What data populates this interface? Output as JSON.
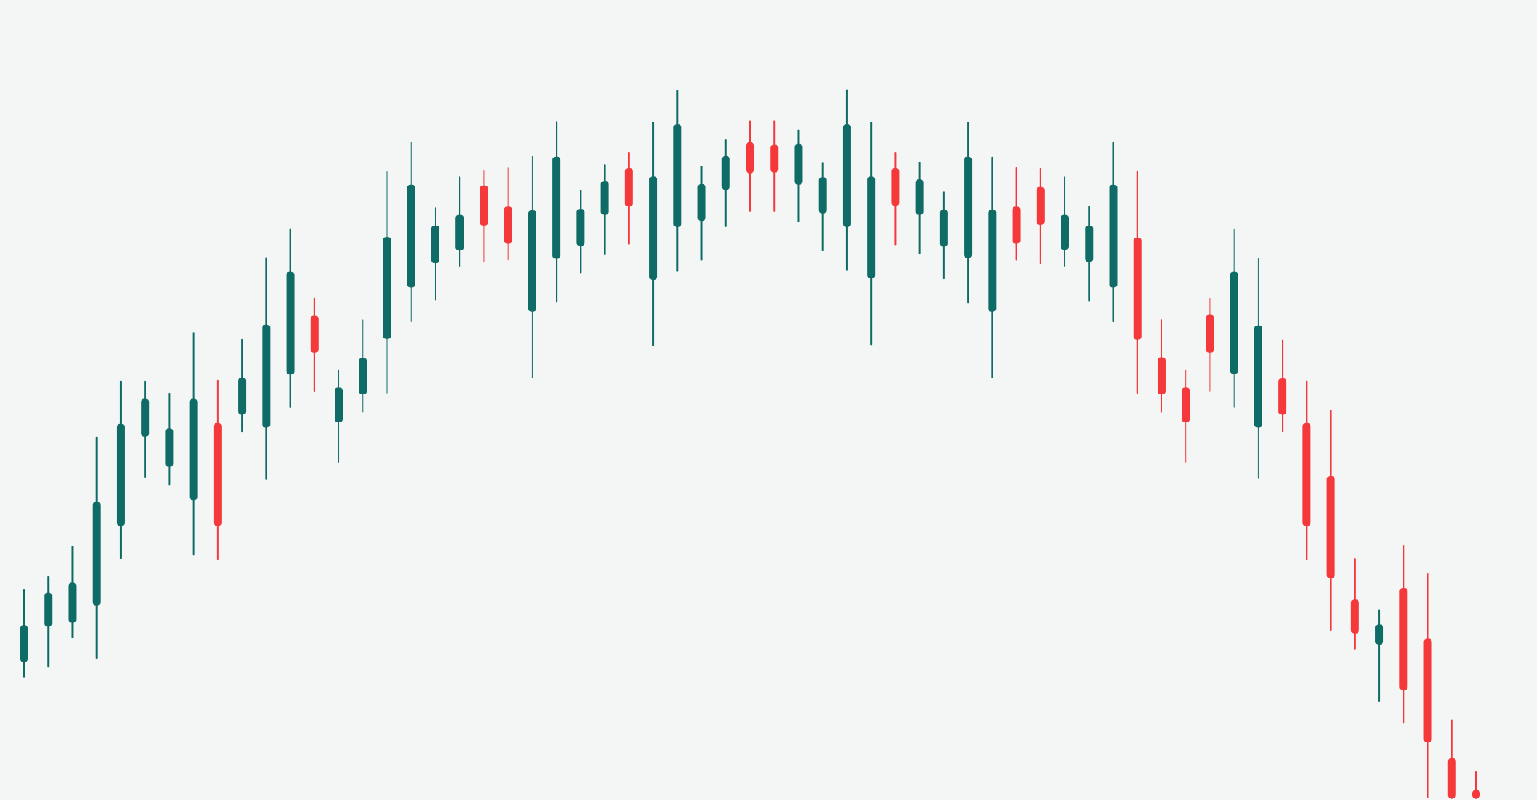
{
  "colors": {
    "background": "#f4f6f6",
    "bullish": "#0f6b66",
    "bearish": "#f5383a"
  },
  "chart_data": {
    "type": "candlestick",
    "title": "",
    "xlabel": "",
    "ylabel": "",
    "grid": false,
    "legend": "none",
    "ylim": [
      0,
      100
    ],
    "candles": [
      {
        "open": 18.0,
        "close": 22.9,
        "high": 27.6,
        "low": 16.1,
        "color": "bullish"
      },
      {
        "open": 22.7,
        "close": 27.2,
        "high": 29.3,
        "low": 17.4,
        "color": "bullish"
      },
      {
        "open": 23.2,
        "close": 28.5,
        "high": 33.3,
        "low": 21.3,
        "color": "bullish"
      },
      {
        "open": 25.5,
        "close": 39.2,
        "high": 47.7,
        "low": 18.5,
        "color": "bullish"
      },
      {
        "open": 36.0,
        "close": 49.5,
        "high": 55.1,
        "low": 31.7,
        "color": "bullish"
      },
      {
        "open": 47.8,
        "close": 52.8,
        "high": 55.1,
        "low": 42.5,
        "color": "bullish"
      },
      {
        "open": 43.8,
        "close": 48.9,
        "high": 53.5,
        "low": 41.5,
        "color": "bullish"
      },
      {
        "open": 39.4,
        "close": 52.8,
        "high": 61.5,
        "low": 32.2,
        "color": "bullish"
      },
      {
        "open": 49.6,
        "close": 36.0,
        "high": 55.2,
        "low": 31.6,
        "color": "bearish"
      },
      {
        "open": 50.7,
        "close": 55.6,
        "high": 60.6,
        "low": 48.5,
        "color": "bullish"
      },
      {
        "open": 49.0,
        "close": 62.6,
        "high": 71.4,
        "low": 42.2,
        "color": "bullish"
      },
      {
        "open": 56.0,
        "close": 69.6,
        "high": 75.2,
        "low": 51.7,
        "color": "bullish"
      },
      {
        "open": 63.8,
        "close": 58.9,
        "high": 66.1,
        "low": 53.8,
        "color": "bearish"
      },
      {
        "open": 49.7,
        "close": 54.3,
        "high": 56.6,
        "low": 44.4,
        "color": "bullish"
      },
      {
        "open": 53.4,
        "close": 58.2,
        "high": 63.2,
        "low": 51.1,
        "color": "bullish"
      },
      {
        "open": 60.7,
        "close": 74.2,
        "high": 82.8,
        "low": 53.6,
        "color": "bullish"
      },
      {
        "open": 67.5,
        "close": 81.1,
        "high": 86.7,
        "low": 63.1,
        "color": "bullish"
      },
      {
        "open": 70.7,
        "close": 75.7,
        "high": 78.0,
        "low": 65.9,
        "color": "bullish"
      },
      {
        "open": 72.4,
        "close": 77.1,
        "high": 82.1,
        "low": 70.3,
        "color": "bullish"
      },
      {
        "open": 81.0,
        "close": 75.7,
        "high": 82.9,
        "low": 70.9,
        "color": "bearish"
      },
      {
        "open": 78.2,
        "close": 73.3,
        "high": 83.3,
        "low": 71.2,
        "color": "bearish"
      },
      {
        "open": 64.3,
        "close": 77.7,
        "high": 84.8,
        "low": 55.6,
        "color": "bullish"
      },
      {
        "open": 71.3,
        "close": 84.8,
        "high": 89.4,
        "low": 65.6,
        "color": "bullish"
      },
      {
        "open": 73.0,
        "close": 77.9,
        "high": 80.3,
        "low": 69.5,
        "color": "bullish"
      },
      {
        "open": 77.1,
        "close": 81.6,
        "high": 83.7,
        "low": 71.9,
        "color": "bullish"
      },
      {
        "open": 83.3,
        "close": 78.2,
        "high": 85.3,
        "low": 73.3,
        "color": "bearish"
      },
      {
        "open": 68.5,
        "close": 82.2,
        "high": 89.3,
        "low": 59.9,
        "color": "bullish"
      },
      {
        "open": 75.5,
        "close": 89.1,
        "high": 93.5,
        "low": 69.7,
        "color": "bullish"
      },
      {
        "open": 76.3,
        "close": 81.2,
        "high": 83.5,
        "low": 71.2,
        "color": "bullish"
      },
      {
        "open": 80.4,
        "close": 84.9,
        "high": 87.0,
        "low": 75.6,
        "color": "bullish"
      },
      {
        "open": 86.7,
        "close": 82.6,
        "high": 89.5,
        "low": 77.6,
        "color": "bearish"
      },
      {
        "open": 86.4,
        "close": 82.7,
        "high": 89.5,
        "low": 77.6,
        "color": "bearish"
      },
      {
        "open": 81.1,
        "close": 86.5,
        "high": 88.3,
        "low": 76.2,
        "color": "bullish"
      },
      {
        "open": 77.3,
        "close": 82.1,
        "high": 83.9,
        "low": 72.4,
        "color": "bullish"
      },
      {
        "open": 75.5,
        "close": 89.1,
        "high": 93.6,
        "low": 69.8,
        "color": "bullish"
      },
      {
        "open": 68.7,
        "close": 82.2,
        "high": 89.3,
        "low": 60.0,
        "color": "bullish"
      },
      {
        "open": 83.3,
        "close": 78.3,
        "high": 85.3,
        "low": 73.2,
        "color": "bearish"
      },
      {
        "open": 77.1,
        "close": 81.8,
        "high": 84.0,
        "low": 72.0,
        "color": "bullish"
      },
      {
        "open": 72.9,
        "close": 77.8,
        "high": 80.1,
        "low": 68.7,
        "color": "bullish"
      },
      {
        "open": 71.4,
        "close": 84.8,
        "high": 89.3,
        "low": 65.5,
        "color": "bullish"
      },
      {
        "open": 64.3,
        "close": 77.8,
        "high": 84.7,
        "low": 55.6,
        "color": "bullish"
      },
      {
        "open": 78.2,
        "close": 73.3,
        "high": 83.3,
        "low": 71.2,
        "color": "bearish"
      },
      {
        "open": 80.8,
        "close": 75.8,
        "high": 83.2,
        "low": 70.7,
        "color": "bearish"
      },
      {
        "open": 72.5,
        "close": 77.1,
        "high": 82.1,
        "low": 70.3,
        "color": "bullish"
      },
      {
        "open": 70.9,
        "close": 75.7,
        "high": 78.2,
        "low": 65.8,
        "color": "bullish"
      },
      {
        "open": 67.5,
        "close": 81.1,
        "high": 86.7,
        "low": 63.1,
        "color": "bullish"
      },
      {
        "open": 74.1,
        "close": 60.6,
        "high": 82.8,
        "low": 53.6,
        "color": "bearish"
      },
      {
        "open": 58.3,
        "close": 53.4,
        "high": 63.2,
        "low": 51.1,
        "color": "bearish"
      },
      {
        "open": 54.3,
        "close": 49.7,
        "high": 56.6,
        "low": 44.4,
        "color": "bearish"
      },
      {
        "open": 63.9,
        "close": 58.9,
        "high": 66.0,
        "low": 53.8,
        "color": "bearish"
      },
      {
        "open": 56.1,
        "close": 69.6,
        "high": 75.2,
        "low": 51.7,
        "color": "bullish"
      },
      {
        "open": 49.0,
        "close": 62.5,
        "high": 71.3,
        "low": 42.3,
        "color": "bullish"
      },
      {
        "open": 55.5,
        "close": 50.7,
        "high": 60.5,
        "low": 48.5,
        "color": "bearish"
      },
      {
        "open": 49.6,
        "close": 36.0,
        "high": 55.1,
        "low": 31.6,
        "color": "bearish"
      },
      {
        "open": 42.6,
        "close": 29.1,
        "high": 51.2,
        "low": 22.2,
        "color": "bearish"
      },
      {
        "open": 26.3,
        "close": 21.8,
        "high": 31.6,
        "low": 19.8,
        "color": "bearish"
      },
      {
        "open": 20.3,
        "close": 23.0,
        "high": 24.9,
        "low": 12.9,
        "color": "bullish"
      },
      {
        "open": 27.8,
        "close": 14.3,
        "high": 33.4,
        "low": 10.0,
        "color": "bearish"
      },
      {
        "open": 21.1,
        "close": 7.4,
        "high": 29.7,
        "low": 0.1,
        "color": "bearish"
      },
      {
        "open": 5.3,
        "close": 0.0,
        "high": 10.3,
        "low": 0.0,
        "color": "bearish"
      },
      {
        "open": 1.1,
        "close": 0.0,
        "high": 3.5,
        "low": 0.0,
        "color": "bearish"
      }
    ]
  }
}
